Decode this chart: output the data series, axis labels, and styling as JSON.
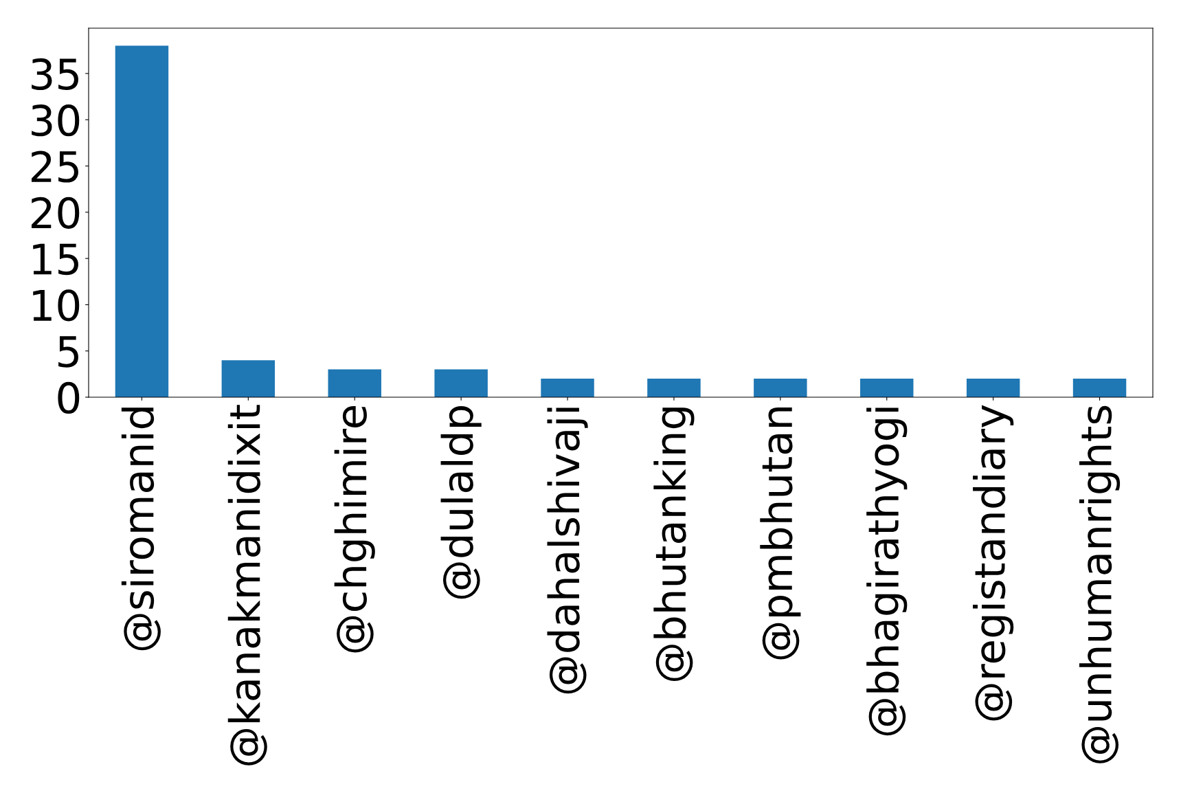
{
  "chart_data": {
    "type": "bar",
    "categories": [
      "@siromanid",
      "@kanakmanidixit",
      "@chghimire",
      "@dulaldp",
      "@dahalshivaji",
      "@bhutanking",
      "@pmbhutan",
      "@bhagirathyogi",
      "@registandiary",
      "@unhumanrights"
    ],
    "values": [
      38,
      4,
      3,
      3,
      2,
      2,
      2,
      2,
      2,
      2
    ],
    "color": "#1f77b4",
    "ylim": [
      0,
      39.9
    ],
    "yticks": [
      0,
      5,
      10,
      15,
      20,
      25,
      30,
      35
    ],
    "grid": false,
    "legend": false
  }
}
